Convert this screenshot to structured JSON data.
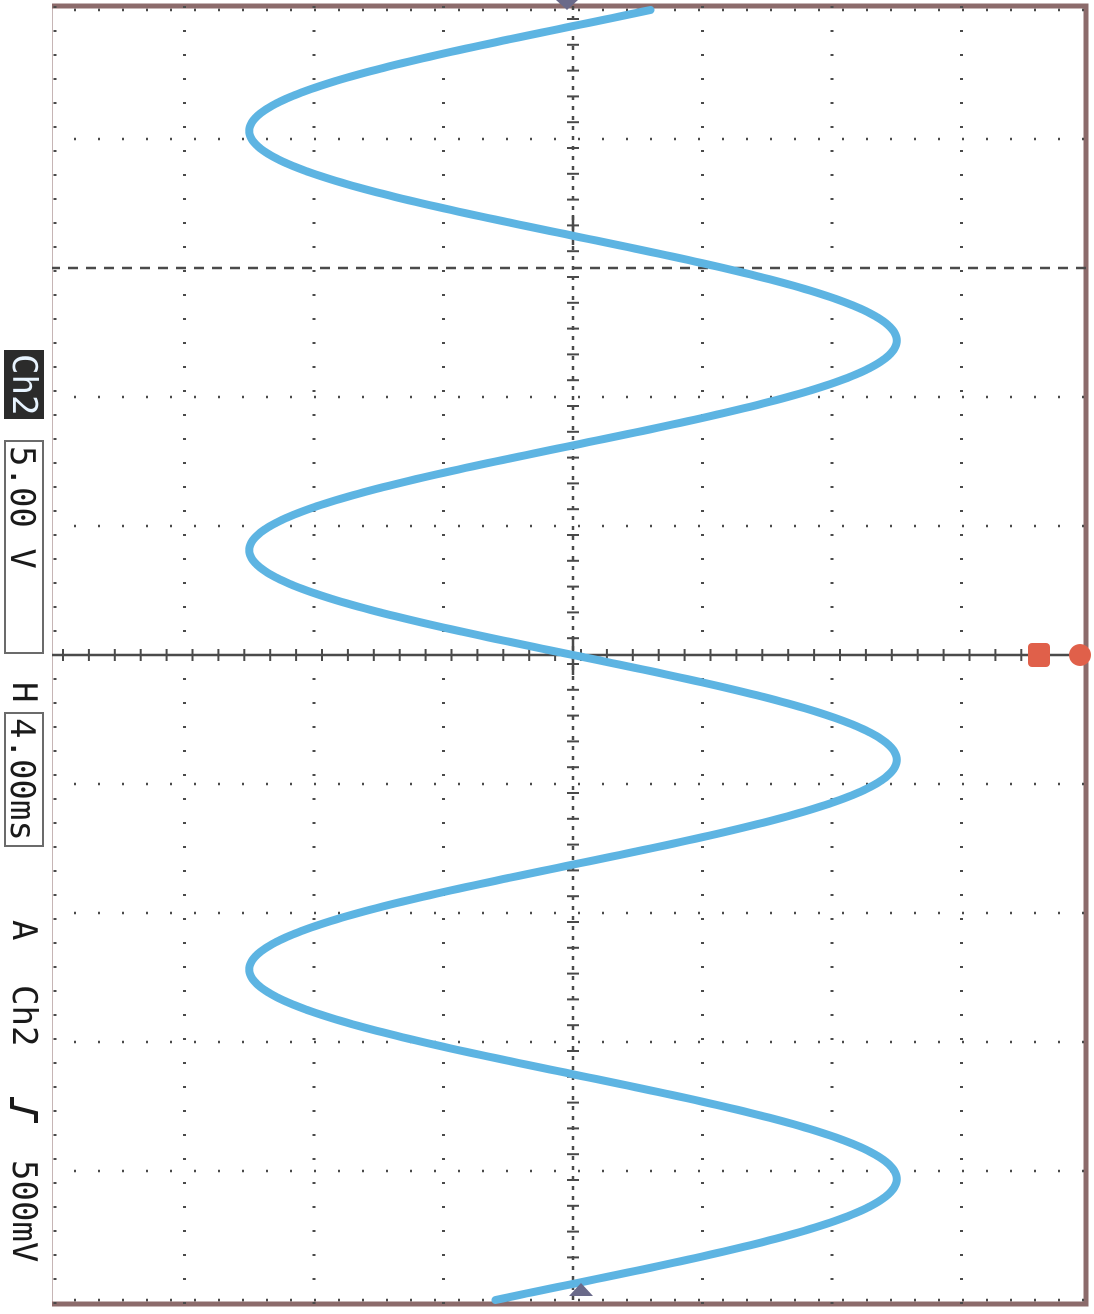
{
  "status": {
    "channel": "Ch2",
    "volts_per_div": "5.00 V",
    "horizontal_prefix": "H",
    "time_per_div": "4.00ms",
    "trigger_mode": "A",
    "trigger_source": "Ch2",
    "trigger_slope_icon": "rising-edge-icon",
    "trigger_level": "500mV"
  },
  "colors": {
    "trace": "#5db4e2",
    "graticule": "#4a4a4a",
    "frame": "#8c6b6b",
    "ground_marker": "#e0604a",
    "trigger_marker": "#6a6a8a"
  },
  "chart_data": {
    "type": "line",
    "title": "",
    "xlabel": "",
    "ylabel": "",
    "x_unit": "ms",
    "y_unit": "V",
    "ms_per_div": 4,
    "v_per_div": 5,
    "divisions_time": 10,
    "divisions_volts": 8,
    "xlim": [
      -20,
      20
    ],
    "ylim": [
      -20,
      20
    ],
    "grid": true,
    "series": [
      {
        "waveform": "sine",
        "amplitude": 12.5,
        "period_ms": 13.0,
        "phase_deg": 0,
        "x_range": [
          -20,
          20
        ]
      }
    ]
  }
}
